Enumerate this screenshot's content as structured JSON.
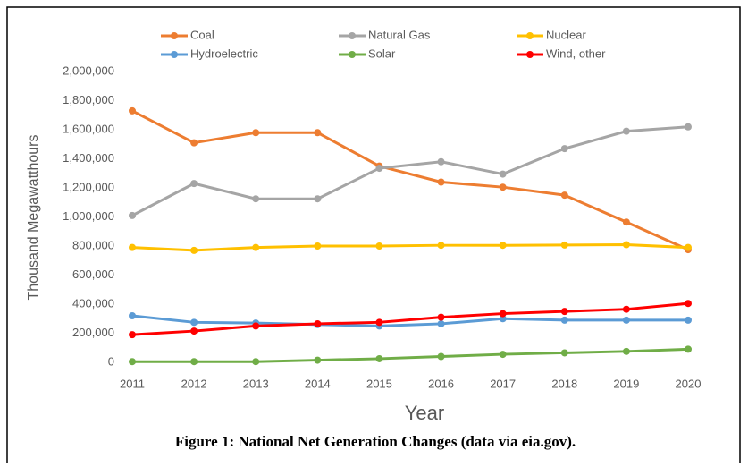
{
  "chart_data": {
    "type": "line",
    "x_label": "Year",
    "y_label": "Thousand Megawatthours",
    "caption": "Figure 1: National Net Generation Changes (data via eia.gov).",
    "categories": [
      "2011",
      "2012",
      "2013",
      "2014",
      "2015",
      "2016",
      "2017",
      "2018",
      "2019",
      "2020"
    ],
    "series": [
      {
        "name": "Coal",
        "color": "#ed7d31",
        "values": [
          1730000,
          1510000,
          1580000,
          1580000,
          1350000,
          1240000,
          1205000,
          1150000,
          965000,
          775000
        ]
      },
      {
        "name": "Natural Gas",
        "color": "#a5a5a5",
        "values": [
          1010000,
          1230000,
          1125000,
          1125000,
          1335000,
          1380000,
          1295000,
          1470000,
          1590000,
          1620000
        ]
      },
      {
        "name": "Nuclear",
        "color": "#ffc000",
        "values": [
          790000,
          770000,
          790000,
          800000,
          800000,
          805000,
          805000,
          807000,
          809000,
          790000
        ]
      },
      {
        "name": "Hydroelectric",
        "color": "#5b9bd5",
        "values": [
          320000,
          275000,
          270000,
          260000,
          250000,
          265000,
          300000,
          290000,
          290000,
          290000
        ]
      },
      {
        "name": "Solar",
        "color": "#70ad47",
        "values": [
          5000,
          5000,
          5000,
          15000,
          25000,
          40000,
          55000,
          65000,
          75000,
          90000
        ]
      },
      {
        "name": "Wind, other",
        "color": "#ff0000",
        "values": [
          190000,
          215000,
          250000,
          265000,
          275000,
          310000,
          335000,
          350000,
          365000,
          405000
        ]
      }
    ],
    "ylim": [
      0,
      2000000
    ],
    "yticks": [
      0,
      {
        "value": 200000,
        "label": "200,000"
      },
      {
        "value": 400000,
        "label": "400,000"
      },
      {
        "value": 600000,
        "label": "600,000"
      },
      {
        "value": 800000,
        "label": "800,000"
      },
      {
        "value": 1000000,
        "label": "1,000,000"
      },
      {
        "value": 1200000,
        "label": "1,200,000"
      },
      {
        "value": 1400000,
        "label": "1,400,000"
      },
      {
        "value": 1600000,
        "label": "1,600,000"
      },
      {
        "value": 1800000,
        "label": "1,800,000"
      },
      {
        "value": 2000000,
        "label": "2,000,000"
      }
    ],
    "grid": false
  }
}
